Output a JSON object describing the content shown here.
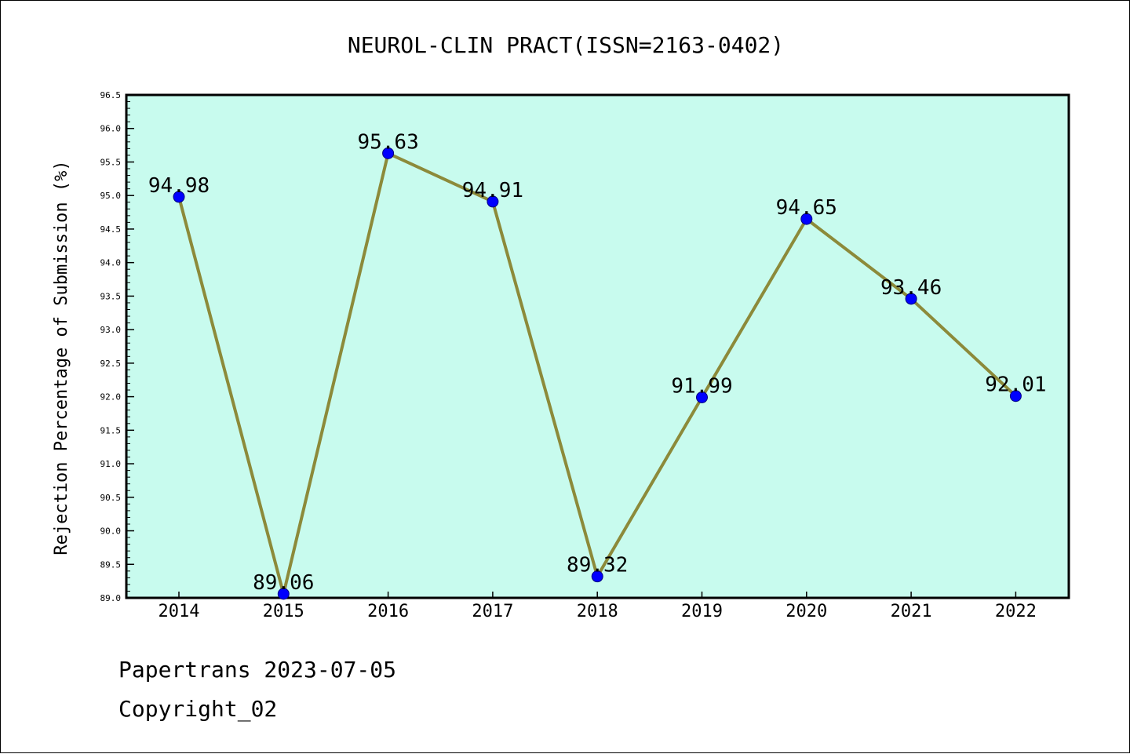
{
  "chart_data": {
    "type": "line",
    "title": "NEUROL-CLIN PRACT(ISSN=2163-0402)",
    "ylabel": "Rejection Percentage of Submission (%)",
    "xlabel": "",
    "categories": [
      "2014",
      "2015",
      "2016",
      "2017",
      "2018",
      "2019",
      "2020",
      "2021",
      "2022"
    ],
    "series": [
      {
        "values": [
          94.98,
          89.06,
          95.63,
          94.91,
          89.32,
          91.99,
          94.65,
          93.46,
          92.01
        ]
      }
    ],
    "data_labels": [
      "94.98",
      "89.06",
      "95.63",
      "94.91",
      "89.32",
      "91.99",
      "94.65",
      "93.46",
      "92.01"
    ],
    "ylim": [
      89.0,
      96.5
    ],
    "yticks": [
      "89.0",
      "89.5",
      "90.0",
      "90.5",
      "91.0",
      "91.5",
      "92.0",
      "92.5",
      "93.0",
      "93.5",
      "94.0",
      "94.5",
      "95.0",
      "95.5",
      "96.0",
      "96.5"
    ],
    "grid": false,
    "colors": {
      "plot_background": "#c8fbee",
      "line": "#8c8a3a",
      "marker": "#0000ff",
      "axis": "#000000"
    }
  },
  "footer": {
    "source": "Papertrans 2023-07-05",
    "copyright": "Copyright_02"
  }
}
